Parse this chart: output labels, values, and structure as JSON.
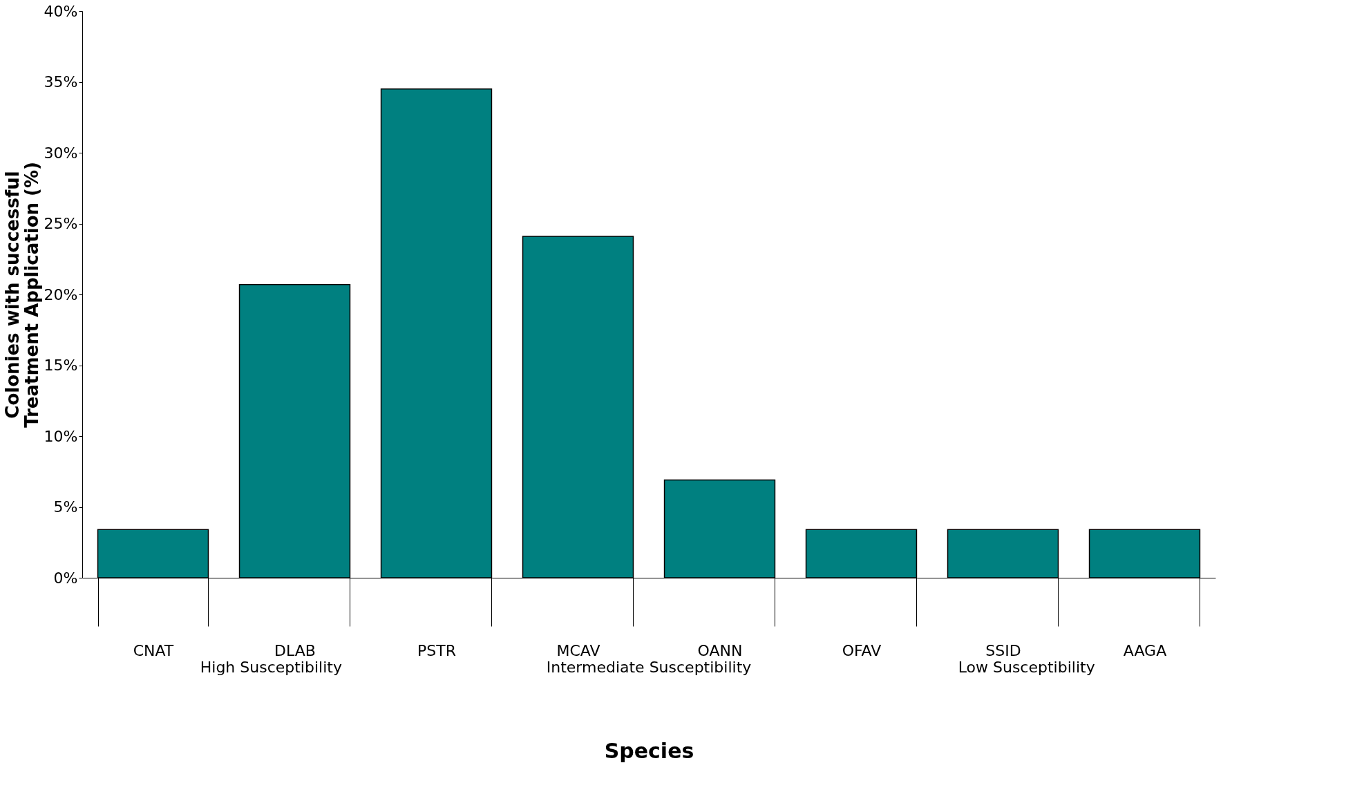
{
  "chart_data": {
    "type": "bar",
    "categories": [
      "CNAT",
      "DLAB",
      "PSTR",
      "MCAV",
      "OANN",
      "OFAV",
      "SSID",
      "AAGA"
    ],
    "values": [
      3.4,
      20.7,
      34.5,
      24.1,
      6.9,
      3.4,
      3.4,
      3.4
    ],
    "color": "#008080",
    "xlabel": "Species",
    "ylabel": "Colonies with successful Treatment Application (%)",
    "ylim": [
      0,
      40
    ],
    "yticks": [
      {
        "value": 0,
        "label": "0%"
      },
      {
        "value": 5,
        "label": "5%"
      },
      {
        "value": 10,
        "label": "10%"
      },
      {
        "value": 15,
        "label": "15%"
      },
      {
        "value": 20,
        "label": "20%"
      },
      {
        "value": 25,
        "label": "25%"
      },
      {
        "value": 30,
        "label": "30%"
      },
      {
        "value": 35,
        "label": "35%"
      },
      {
        "value": 40,
        "label": "40%"
      }
    ],
    "annotations": [
      "High Susceptibility",
      "Intermediate Susceptibility",
      "Low Susceptibility"
    ],
    "grid": false
  }
}
